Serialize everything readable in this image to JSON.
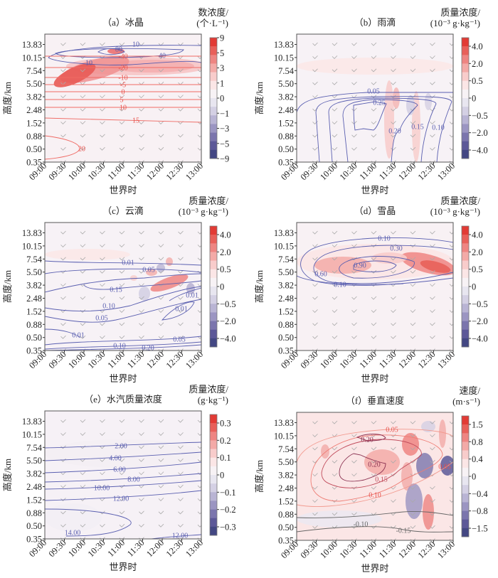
{
  "figure": {
    "xlabel": "世界时",
    "ylabel": "高度/km"
  },
  "chart_data": [
    {
      "type": "heatmap",
      "panel": "a",
      "title": "（a）冰晶",
      "colorbar_label": [
        "数浓度/",
        "(个·L⁻¹)"
      ],
      "colorbar_ticks": [
        "9",
        "5",
        "3",
        "1",
        "0",
        "−1",
        "−3",
        "−5",
        "−9"
      ],
      "x_ticks": [
        "09:00",
        "09:30",
        "10:00",
        "10:30",
        "11:00",
        "11:30",
        "12:00",
        "12:30",
        "13:00"
      ],
      "y_ticks": [
        "13.83",
        "10.15",
        "7.54",
        "5.50",
        "3.82",
        "2.48",
        "1.52",
        "0.88",
        "0.50",
        "0.35"
      ],
      "contour_labels": [
        "10",
        "40",
        "80",
        "10",
        "-40",
        "-20",
        "-10",
        "-5",
        "0",
        "5",
        "10",
        "15",
        "20"
      ]
    },
    {
      "type": "heatmap",
      "panel": "b",
      "title": "（b）雨滴",
      "colorbar_label": [
        "质量浓度/",
        "(10⁻³ g·kg⁻¹)"
      ],
      "colorbar_ticks": [
        "4.0",
        "2.0",
        "0.5",
        "0",
        "−0.5",
        "−2.0",
        "−4.0"
      ],
      "x_ticks": [
        "09:00",
        "09:30",
        "10:00",
        "10:30",
        "11:00",
        "11:30",
        "12:00",
        "12:30",
        "13:00"
      ],
      "y_ticks": [
        "13.83",
        "10.15",
        "7.54",
        "5.50",
        "3.82",
        "2.48",
        "1.52",
        "0.88",
        "0.50",
        "0.35"
      ],
      "contour_labels": [
        "0.05",
        "0.10",
        "0.15",
        "0.20",
        "0.25"
      ]
    },
    {
      "type": "heatmap",
      "panel": "c",
      "title": "（c）云滴",
      "colorbar_label": [
        "质量浓度/",
        "(10⁻³ g·kg⁻¹)"
      ],
      "colorbar_ticks": [
        "4.0",
        "2.0",
        "0.5",
        "0",
        "−0.5",
        "−2.0",
        "−4.0"
      ],
      "x_ticks": [
        "09:00",
        "09:30",
        "10:00",
        "10:30",
        "11:00",
        "11:30",
        "12:00",
        "12:30",
        "13:00"
      ],
      "y_ticks": [
        "13.83",
        "10.15",
        "7.54",
        "5.50",
        "3.82",
        "2.48",
        "1.52",
        "0.88",
        "0.50",
        "0.35"
      ],
      "contour_labels": [
        "0.01",
        "0.05",
        "0.15",
        "0.10",
        "0.05",
        "0.01",
        "0.01",
        "0.01",
        "0.05",
        "0.10",
        "0.20"
      ]
    },
    {
      "type": "heatmap",
      "panel": "d",
      "title": "（d）雪晶",
      "colorbar_label": [
        "质量浓度/",
        "(10⁻³ g·kg⁻¹)"
      ],
      "colorbar_ticks": [
        "4.0",
        "2.0",
        "0.5",
        "0",
        "−0.5",
        "−2.0",
        "−4.0"
      ],
      "x_ticks": [
        "09:00",
        "09:30",
        "10:00",
        "10:30",
        "11:00",
        "11:30",
        "12:00",
        "12:30",
        "13:00"
      ],
      "y_ticks": [
        "13.83",
        "10.15",
        "7.54",
        "5.50",
        "3.82",
        "2.48",
        "1.52",
        "0.88",
        "0.50",
        "0.35"
      ],
      "contour_labels": [
        "0.10",
        "0.30",
        "0.60",
        "0.90",
        "0.10"
      ]
    },
    {
      "type": "heatmap",
      "panel": "e",
      "title": "（e）水汽质量浓度",
      "colorbar_label": [
        "质量浓度/",
        "(g·kg⁻¹)"
      ],
      "colorbar_ticks": [
        "0.3",
        "0.2",
        "0.1",
        "0",
        "−0.1",
        "−0.2",
        "−0.3"
      ],
      "x_ticks": [
        "09:00",
        "09:30",
        "10:00",
        "10:30",
        "11:00",
        "11:30",
        "12:00",
        "12:30",
        "13:00"
      ],
      "y_ticks": [
        "13.83",
        "10.15",
        "7.54",
        "5.50",
        "3.82",
        "2.48",
        "1.52",
        "0.88",
        "0.50",
        "0.35"
      ],
      "contour_labels": [
        "2.00",
        "4.00",
        "6.00",
        "8.00",
        "10.00",
        "12.00",
        "14.00",
        "12.00"
      ]
    },
    {
      "type": "heatmap",
      "panel": "f",
      "title": "（f）垂直速度",
      "colorbar_label": [
        "速度/",
        "(m·s⁻¹)"
      ],
      "colorbar_ticks": [
        "1.5",
        "0.8",
        "0.4",
        "0",
        "−0.4",
        "−0.8",
        "−1.5"
      ],
      "x_ticks": [
        "09:00",
        "09:30",
        "10:00",
        "10:30",
        "11:00",
        "11:30",
        "12:00",
        "12:30",
        "13:00"
      ],
      "y_ticks": [
        "13.83",
        "10.15",
        "7.54",
        "5.50",
        "3.82",
        "2.48",
        "1.52",
        "0.88",
        "0.50",
        "0.35"
      ],
      "contour_labels": [
        "0.05",
        "0.10",
        "0.15",
        "0.20",
        "0.20",
        "0.05",
        "-0.10",
        "-0.15"
      ]
    }
  ]
}
